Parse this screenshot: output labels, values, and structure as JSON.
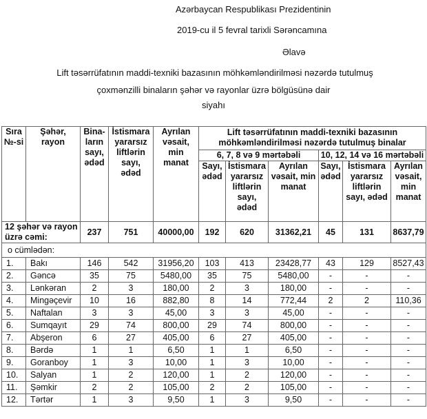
{
  "header": {
    "line1": "Azərbaycan Respublikası Prezidentinin",
    "line2": "2019-cu il 5  fevral tarixli Sərəncamına",
    "line3": "Əlavə"
  },
  "title": {
    "line1": "Lift təsərrüfatının maddi-texniki bazasının möhkəmləndirilməsi nəzərdə tutulmuş",
    "line2": "çoxmənzilli binaların şəhər və rayonlar üzrə bölgüsünə dair",
    "line3": "siyahı"
  },
  "table": {
    "headers": {
      "no": "Sıra №-si",
      "city": "Şəhər, rayon",
      "buildings": "Bina-ların sayı, ədəd",
      "lifts": "İstismara yararsız liftlərin sayı, ədəd",
      "funds": "Ayrılan vəsait, min manat",
      "group": "Lift təsərrüfatının maddi-texniki bazasının möhkəmləndirilməsi nəzərdə tutulmuş binalar",
      "sub1": "6, 7, 8 və 9 mərtəbəli",
      "sub2": "10, 12, 14 və 16 mərtəbəli",
      "count": "Sayı, ədəd",
      "sub_lifts": "İstismara yararsız liftlərin sayı, ədəd",
      "sub_funds": "Ayrılan vəsait, min manat"
    },
    "total": {
      "label": "12 şəhər və rayon üzrə cəmi:",
      "values": [
        "237",
        "751",
        "40000,00",
        "192",
        "620",
        "31362,21",
        "45",
        "131",
        "8637,79"
      ]
    },
    "including": "o cümlədən:",
    "rows": [
      [
        "1.",
        "Bakı",
        "146",
        "542",
        "31956,20",
        "103",
        "413",
        "23428,77",
        "43",
        "129",
        "8527,43"
      ],
      [
        "2.",
        "Gəncə",
        "35",
        "75",
        "5480,00",
        "35",
        "75",
        "5480,00",
        "-",
        "-",
        "-"
      ],
      [
        "3.",
        "Lənkəran",
        "2",
        "3",
        "180,00",
        "2",
        "3",
        "180,00",
        "-",
        "-",
        "-"
      ],
      [
        "4.",
        "Mingəçevir",
        "10",
        "16",
        "882,80",
        "8",
        "14",
        "772,44",
        "2",
        "2",
        "110,36"
      ],
      [
        "5.",
        "Naftalan",
        "3",
        "3",
        "45,00",
        "3",
        "3",
        "45,00",
        "-",
        "-",
        "-"
      ],
      [
        "6.",
        "Sumqayıt",
        "29",
        "74",
        "800,00",
        "29",
        "74",
        "800,00",
        "-",
        "-",
        "-"
      ],
      [
        "7.",
        "Abşeron",
        "6",
        "27",
        "405,00",
        "6",
        "27",
        "405,00",
        "-",
        "-",
        "-"
      ],
      [
        "8.",
        "Bərdə",
        "1",
        "1",
        "6,50",
        "1",
        "1",
        "6,50",
        "-",
        "-",
        "-"
      ],
      [
        "9.",
        "Goranboy",
        "1",
        "3",
        "10,00",
        "1",
        "3",
        "10,00",
        "-",
        "-",
        "-"
      ],
      [
        "10.",
        "Salyan",
        "1",
        "2",
        "120,00",
        "1",
        "2",
        "120,00",
        "-",
        "-",
        "-"
      ],
      [
        "11.",
        "Şəmkir",
        "2",
        "2",
        "105,00",
        "2",
        "2",
        "105,00",
        "-",
        "-",
        "-"
      ],
      [
        "12.",
        "Tərtər",
        "1",
        "3",
        "9,50",
        "1",
        "3",
        "9,50",
        "-",
        "-",
        "-"
      ]
    ]
  }
}
